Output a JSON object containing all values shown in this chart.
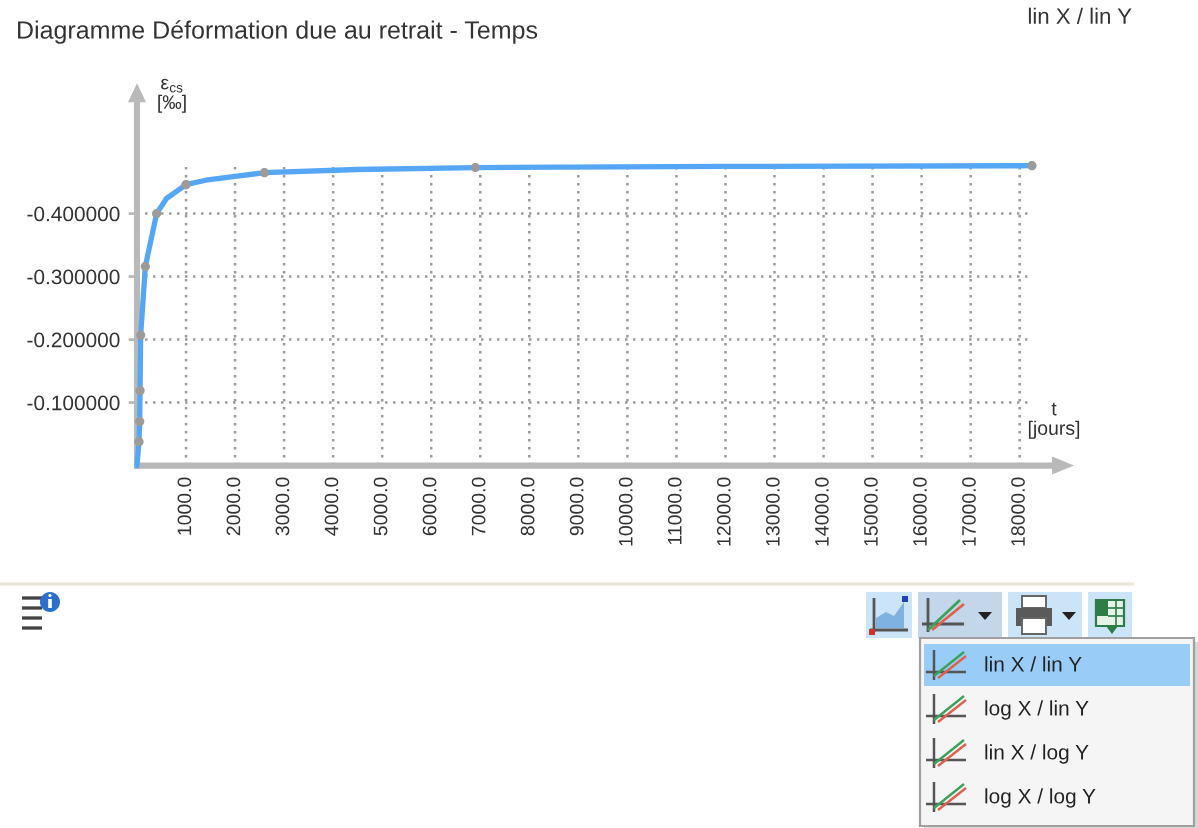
{
  "chart_data": {
    "type": "line",
    "title": "Diagramme Déformation due au retrait - Temps",
    "ylabel": "ε$_{cs}$\n[‰]",
    "xlabel": "t\n[jours]",
    "annotations": [
      "lin X / lin Y",
      "lin X / lin Y",
      "log X / lin Y",
      "lin X / log Y",
      "log X / log Y"
    ],
    "series": [
      {
        "color": "#55a7f5",
        "x": [
          0,
          40,
          55,
          62,
          75,
          170,
          400,
          600,
          1000,
          1400,
          2000,
          2600,
          4500,
          6900,
          12000,
          18250
        ],
        "values": [
          0,
          -0.038,
          -0.07,
          -0.119,
          -0.207,
          -0.316,
          -0.4,
          -0.424,
          -0.446,
          -0.453,
          -0.459,
          -0.465,
          -0.47,
          -0.473,
          -0.475,
          -0.476
        ]
      },
      {
        "type": "scatter",
        "color": "#9b9b9b",
        "marker": "circle",
        "x": [
          40,
          55,
          62,
          75,
          170,
          400,
          1000,
          2600,
          6900,
          18250
        ],
        "values": [
          -0.038,
          -0.07,
          -0.119,
          -0.207,
          -0.316,
          -0.4,
          -0.446,
          -0.465,
          -0.473,
          -0.476
        ]
      }
    ],
    "xlim": [
      0,
      18700
    ],
    "xticks": [
      {
        "value": 1000,
        "label": "1000.0"
      },
      {
        "value": 2000,
        "label": "2000.0"
      },
      {
        "value": 3000,
        "label": "3000.0"
      },
      {
        "value": 4000,
        "label": "4000.0"
      },
      {
        "value": 5000,
        "label": "5000.0"
      },
      {
        "value": 6000,
        "label": "6000.0"
      },
      {
        "value": 7000,
        "label": "7000.0"
      },
      {
        "value": 8000,
        "label": "8000.0"
      },
      {
        "value": 9000,
        "label": "9000.0"
      },
      {
        "value": 10000,
        "label": "10000.0"
      },
      {
        "value": 11000,
        "label": "11000.0"
      },
      {
        "value": 12000,
        "label": "12000.0"
      },
      {
        "value": 13000,
        "label": "13000.0"
      },
      {
        "value": 14000,
        "label": "14000.0"
      },
      {
        "value": 15000,
        "label": "15000.0"
      },
      {
        "value": 16000,
        "label": "16000.0"
      },
      {
        "value": 17000,
        "label": "17000.0"
      },
      {
        "value": 18000,
        "label": "18000.0"
      }
    ],
    "ylim": [
      0,
      -0.58
    ],
    "yticks": [
      {
        "value": -0.1,
        "label": "-0.100000"
      },
      {
        "value": -0.2,
        "label": "-0.200000"
      },
      {
        "value": -0.3,
        "label": "-0.300000"
      },
      {
        "value": -0.4,
        "label": "-0.400000"
      }
    ],
    "grid": true,
    "line_style": "solid"
  }
}
